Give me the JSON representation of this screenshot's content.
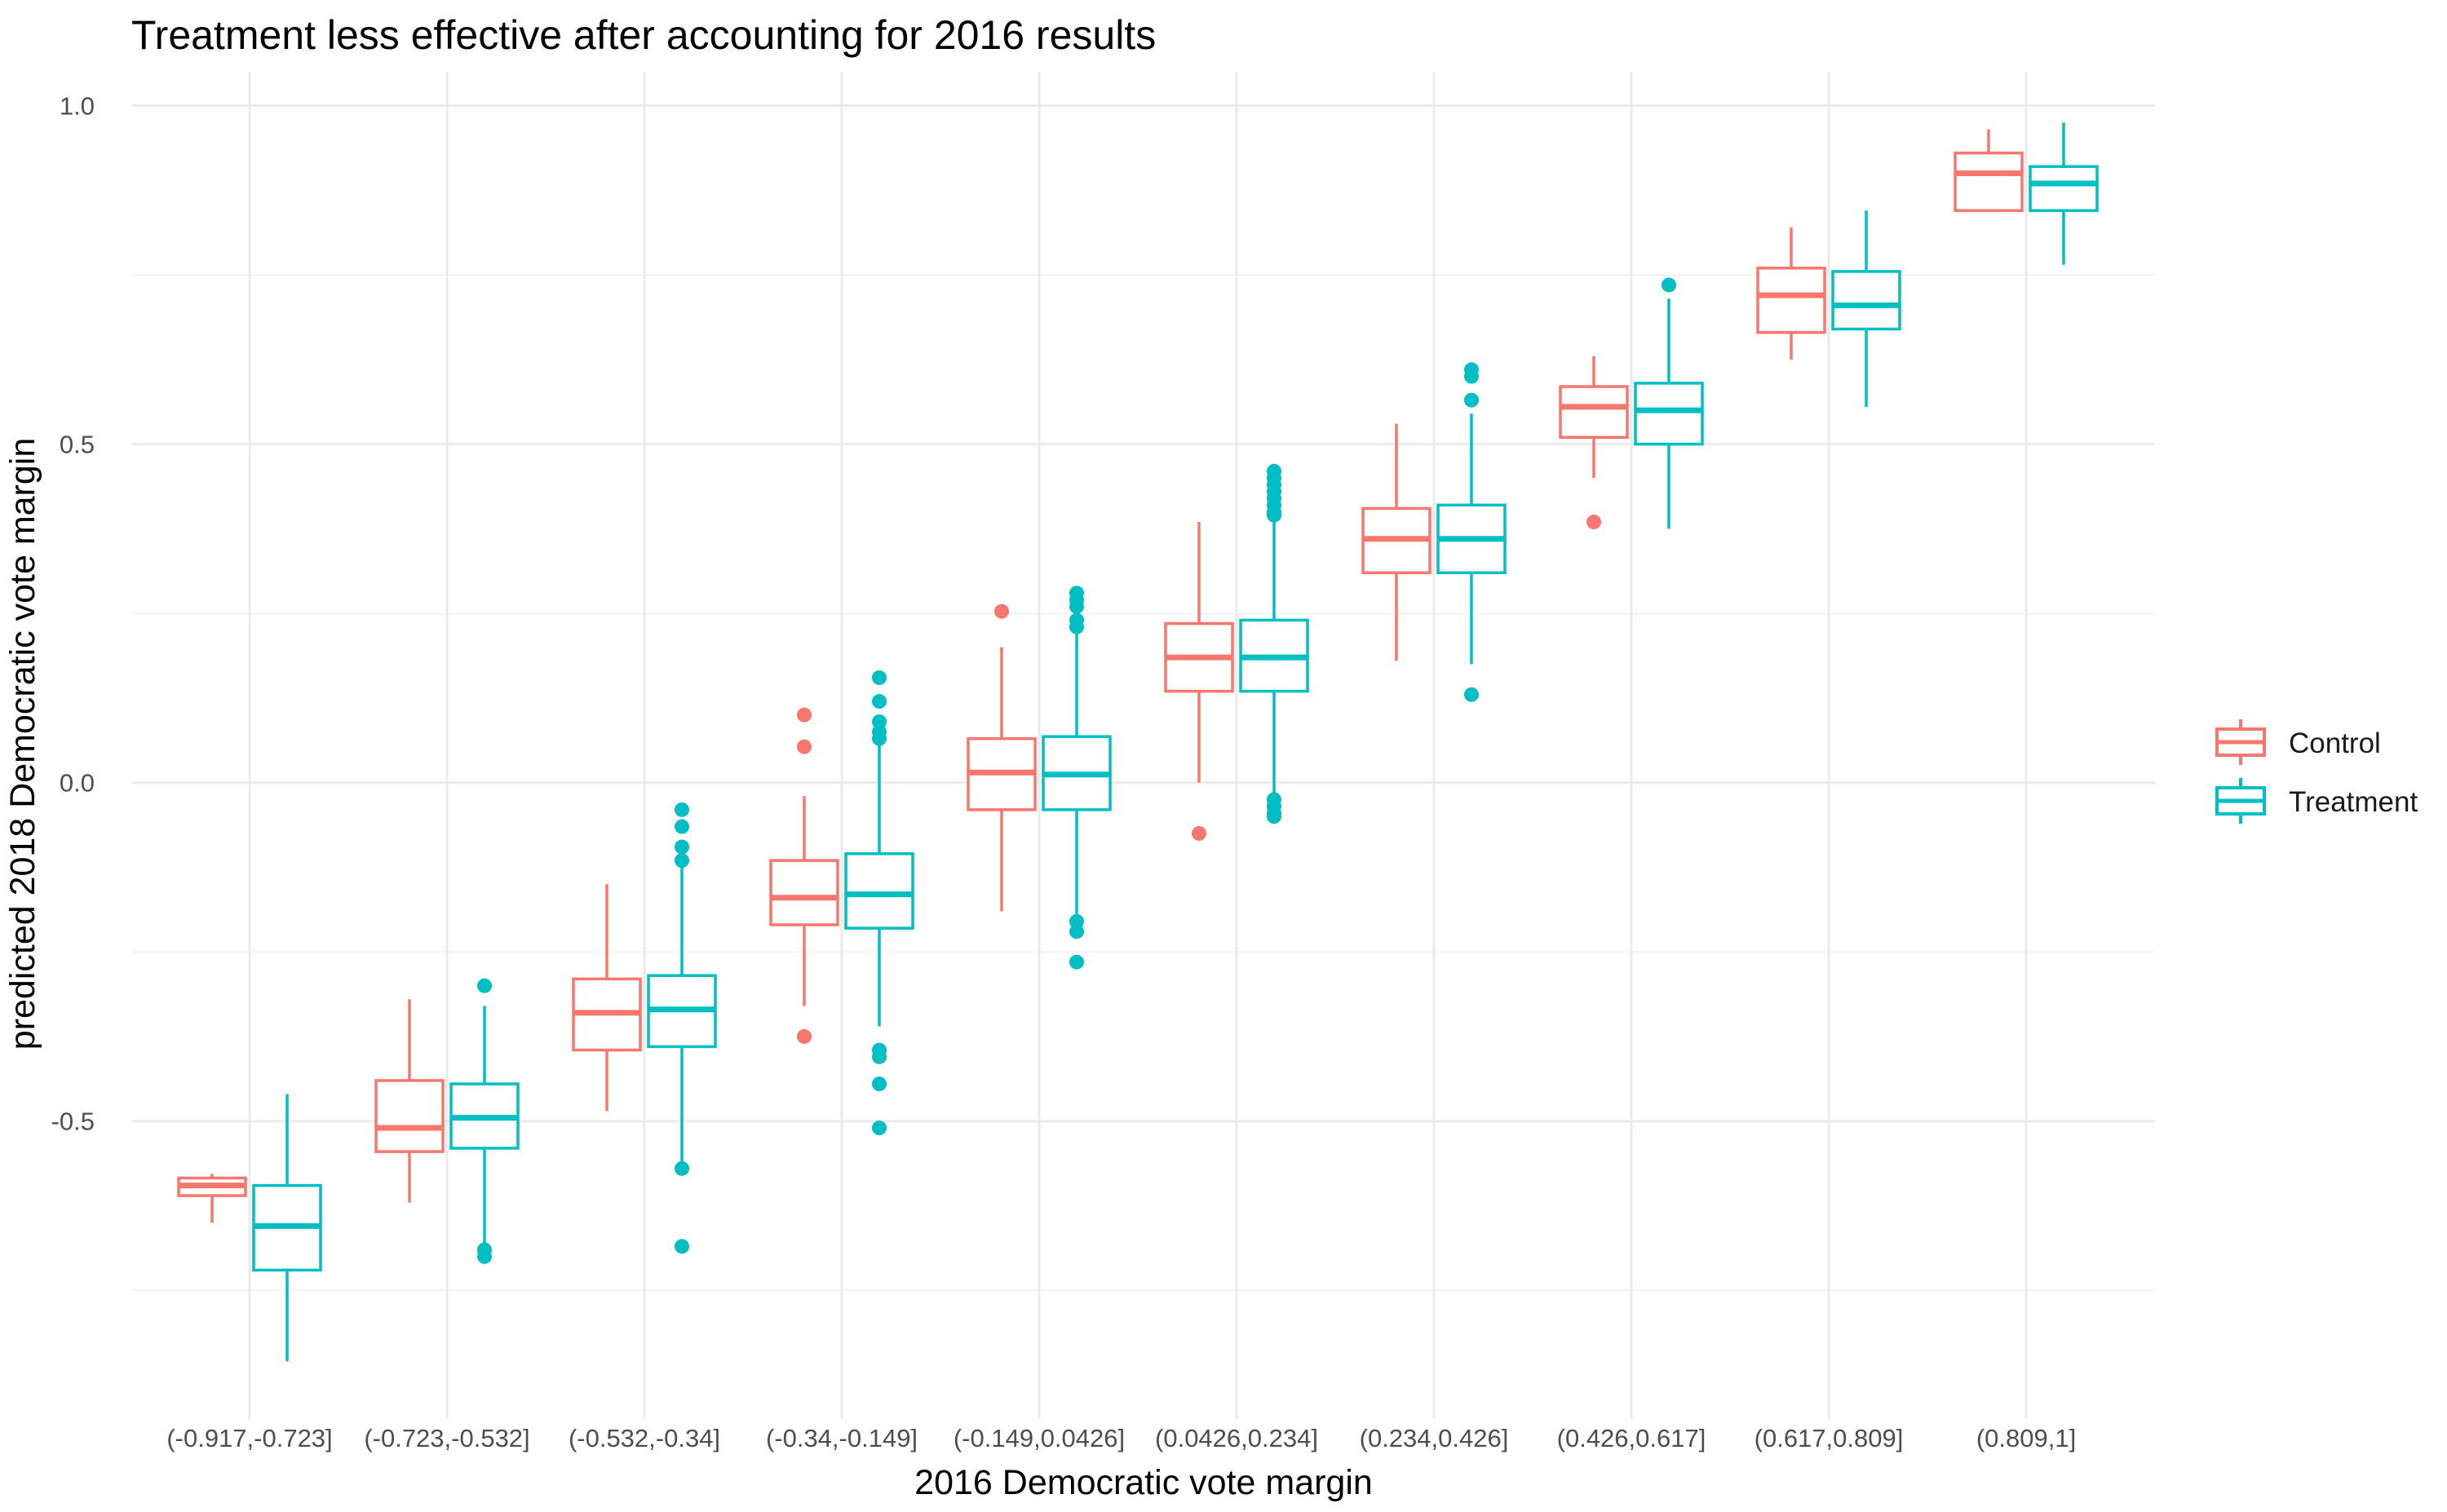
{
  "chart_data": {
    "type": "box",
    "title": "Treatment less effective after accounting for 2016 results",
    "xlabel": "2016 Democratic vote margin",
    "ylabel": "predicted 2018 Democratic vote margin",
    "ylim": [
      -0.94,
      1.05
    ],
    "yticks": [
      -0.5,
      0.0,
      0.5,
      1.0
    ],
    "ytick_labels": [
      "-0.5",
      "0.0",
      "0.5",
      "1.0"
    ],
    "grid": true,
    "legend_position": "right",
    "categories": [
      "(-0.917,-0.723]",
      "(-0.723,-0.532]",
      "(-0.532,-0.34]",
      "(-0.34,-0.149]",
      "(-0.149,0.0426]",
      "(0.0426,0.234]",
      "(0.234,0.426]",
      "(0.426,0.617]",
      "(0.617,0.809]",
      "(0.809,1]"
    ],
    "series": [
      {
        "name": "Control",
        "color": "#F8766D",
        "boxes": [
          {
            "min": -0.65,
            "q1": -0.61,
            "median": -0.595,
            "q3": -0.584,
            "max": -0.578,
            "outliers": []
          },
          {
            "min": -0.62,
            "q1": -0.545,
            "median": -0.51,
            "q3": -0.44,
            "max": -0.32,
            "outliers": []
          },
          {
            "min": -0.485,
            "q1": -0.395,
            "median": -0.34,
            "q3": -0.29,
            "max": -0.15,
            "outliers": []
          },
          {
            "min": -0.33,
            "q1": -0.21,
            "median": -0.17,
            "q3": -0.115,
            "max": -0.02,
            "outliers": [
              0.1,
              0.053,
              -0.375
            ]
          },
          {
            "min": -0.19,
            "q1": -0.04,
            "median": 0.015,
            "q3": 0.065,
            "max": 0.2,
            "outliers": [
              0.253
            ]
          },
          {
            "min": 0.0,
            "q1": 0.135,
            "median": 0.185,
            "q3": 0.235,
            "max": 0.385,
            "outliers": [
              -0.075
            ]
          },
          {
            "min": 0.18,
            "q1": 0.31,
            "median": 0.36,
            "q3": 0.405,
            "max": 0.53,
            "outliers": []
          },
          {
            "min": 0.45,
            "q1": 0.51,
            "median": 0.555,
            "q3": 0.585,
            "max": 0.63,
            "outliers": [
              0.385
            ]
          },
          {
            "min": 0.625,
            "q1": 0.665,
            "median": 0.72,
            "q3": 0.76,
            "max": 0.82,
            "outliers": []
          },
          {
            "min": 0.845,
            "q1": 0.845,
            "median": 0.9,
            "q3": 0.93,
            "max": 0.965,
            "outliers": []
          }
        ]
      },
      {
        "name": "Treatment",
        "color": "#00BFC4",
        "boxes": [
          {
            "min": -0.855,
            "q1": -0.72,
            "median": -0.655,
            "q3": -0.595,
            "max": -0.46,
            "outliers": []
          },
          {
            "min": -0.685,
            "q1": -0.54,
            "median": -0.495,
            "q3": -0.445,
            "max": -0.33,
            "outliers": [
              -0.3,
              -0.69,
              -0.7
            ]
          },
          {
            "min": -0.56,
            "q1": -0.39,
            "median": -0.335,
            "q3": -0.285,
            "max": -0.12,
            "outliers": [
              -0.04,
              -0.065,
              -0.095,
              -0.115,
              -0.57,
              -0.685
            ]
          },
          {
            "min": -0.36,
            "q1": -0.215,
            "median": -0.165,
            "q3": -0.105,
            "max": 0.055,
            "outliers": [
              0.155,
              0.12,
              0.09,
              0.075,
              0.065,
              -0.395,
              -0.405,
              -0.445,
              -0.51
            ]
          },
          {
            "min": -0.2,
            "q1": -0.04,
            "median": 0.012,
            "q3": 0.068,
            "max": 0.22,
            "outliers": [
              0.28,
              0.27,
              0.26,
              0.24,
              0.23,
              -0.205,
              -0.22,
              -0.265
            ]
          },
          {
            "min": -0.015,
            "q1": 0.135,
            "median": 0.185,
            "q3": 0.24,
            "max": 0.385,
            "outliers": [
              0.46,
              0.45,
              0.44,
              0.43,
              0.42,
              0.41,
              0.4,
              0.395,
              -0.025,
              -0.035,
              -0.045,
              -0.05
            ]
          },
          {
            "min": 0.175,
            "q1": 0.31,
            "median": 0.36,
            "q3": 0.41,
            "max": 0.545,
            "outliers": [
              0.61,
              0.6,
              0.565,
              0.13
            ]
          },
          {
            "min": 0.375,
            "q1": 0.5,
            "median": 0.55,
            "q3": 0.59,
            "max": 0.715,
            "outliers": [
              0.735
            ]
          },
          {
            "min": 0.555,
            "q1": 0.67,
            "median": 0.705,
            "q3": 0.755,
            "max": 0.845,
            "outliers": []
          },
          {
            "min": 0.765,
            "q1": 0.845,
            "median": 0.885,
            "q3": 0.91,
            "max": 0.975,
            "outliers": []
          }
        ]
      }
    ]
  }
}
